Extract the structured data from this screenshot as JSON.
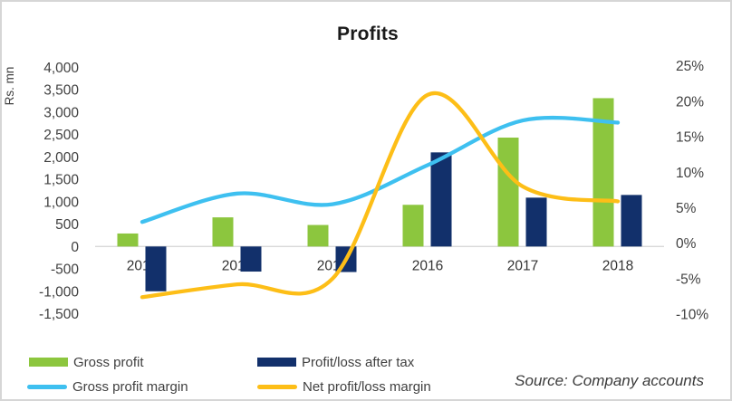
{
  "chart_data": {
    "type": "combo-bar-line",
    "title": "Profits",
    "categories": [
      "2013",
      "2014",
      "2015",
      "2016",
      "2017",
      "2018"
    ],
    "bar_series": [
      {
        "name": "Gross profit",
        "color": "#8CC63E",
        "values": [
          290,
          650,
          480,
          930,
          2430,
          3310
        ]
      },
      {
        "name": "Profit/loss after tax",
        "color": "#12306B",
        "values": [
          -1000,
          -560,
          -570,
          2100,
          1090,
          1150
        ]
      }
    ],
    "line_series": [
      {
        "name": "Gross profit margin",
        "color": "#3EC0F0",
        "values": [
          3.0,
          7.0,
          5.5,
          11.0,
          17.3,
          17.0
        ],
        "unit": "%"
      },
      {
        "name": "Net profit/loss margin",
        "color": "#FDBE17",
        "values": [
          -7.6,
          -5.8,
          -5.0,
          20.9,
          8.0,
          5.9
        ],
        "unit": "%"
      }
    ],
    "left_axis": {
      "label": "Rs. mn",
      "min": -1500,
      "max": 4000,
      "step": 500,
      "tick_labels": [
        "4,000",
        "3,500",
        "3,000",
        "2,500",
        "2,000",
        "1,500",
        "1,000",
        "500",
        "0",
        "-500",
        "-1,000",
        "-1,500"
      ]
    },
    "right_axis": {
      "min": -10,
      "max": 25,
      "step": 5,
      "tick_labels": [
        "25%",
        "20%",
        "15%",
        "10%",
        "5%",
        "0%",
        "-5%",
        "-10%"
      ]
    },
    "grid": false,
    "legend_position": "bottom",
    "line_style": "smooth"
  },
  "legend": {
    "items": [
      {
        "marker": "bar",
        "series": 0
      },
      {
        "marker": "bar",
        "series": 1
      },
      {
        "marker": "line",
        "series": 0
      },
      {
        "marker": "line",
        "series": 1
      }
    ]
  },
  "source_note": "Source: Company accounts",
  "colors": {
    "axis_line": "#D9D9D9",
    "tick_text": "#404040",
    "category_text": "#333333",
    "border": "#D6D6D6"
  }
}
